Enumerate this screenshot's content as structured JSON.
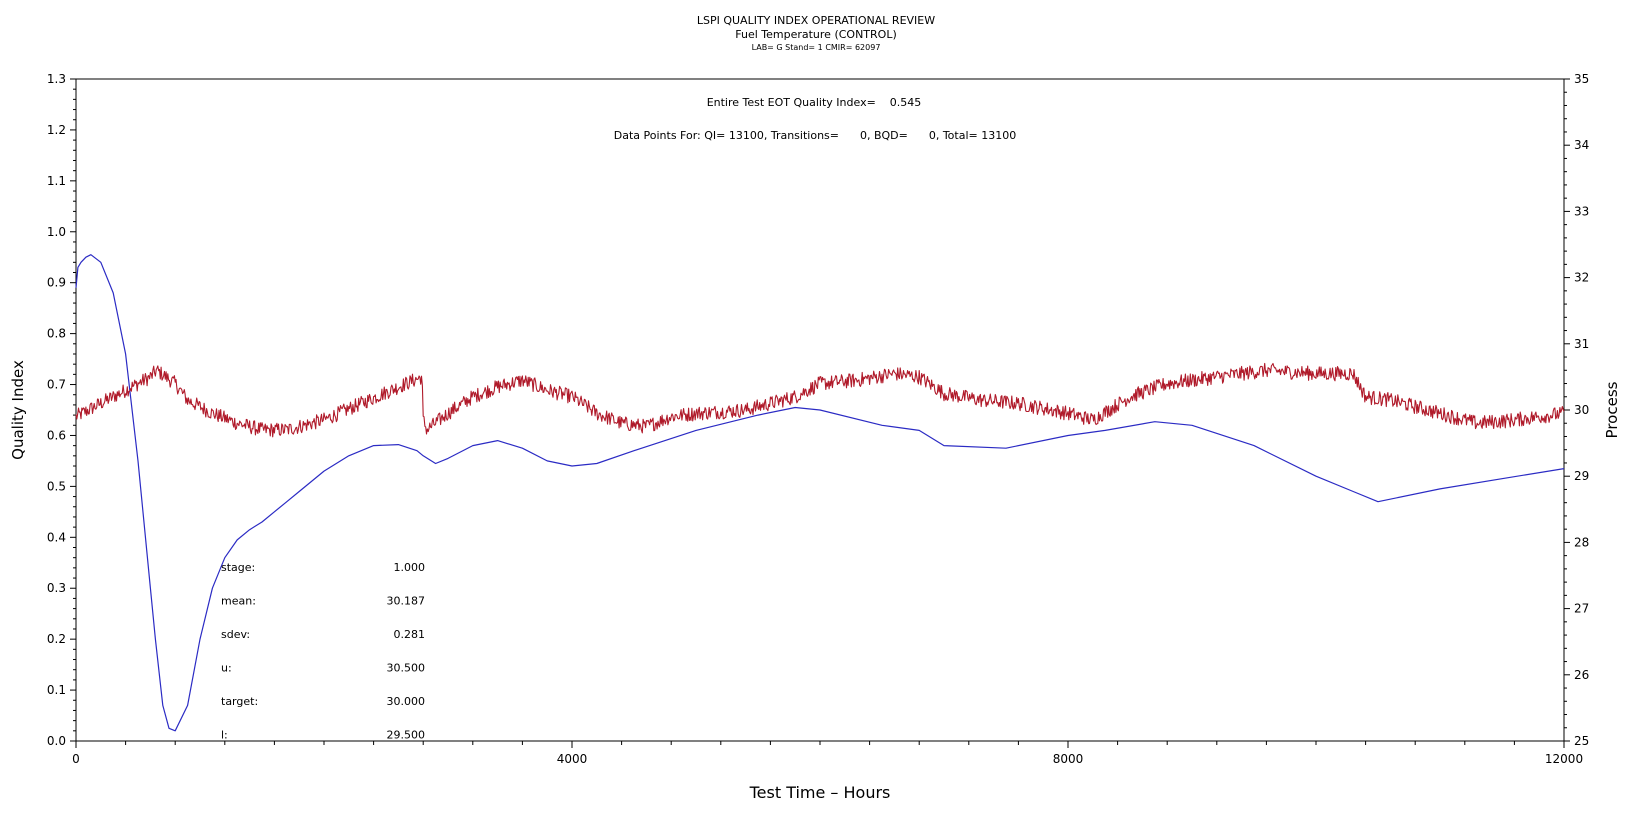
{
  "header": {
    "title": "LSPI QUALITY INDEX OPERATIONAL REVIEW",
    "subtitle": "Fuel Temperature (CONTROL)",
    "info": "LAB= G Stand= 1 CMIR= 62097"
  },
  "annotations": {
    "quality_index": "Entire Test EOT Quality Index=    0.545",
    "data_points": "Data Points For: QI= 13100, Transitions=      0, BQD=      0, Total= 13100"
  },
  "stats": [
    {
      "label": "stage:",
      "value": "1.000"
    },
    {
      "label": "mean:",
      "value": "30.187"
    },
    {
      "label": "sdev:",
      "value": "0.281"
    },
    {
      "label": "u:",
      "value": "30.500"
    },
    {
      "label": "target:",
      "value": "30.000"
    },
    {
      "label": "l:",
      "value": "29.500"
    }
  ],
  "colors": {
    "quality_index": "#2b2bc4",
    "process": "#b01a2a",
    "axis": "#000000"
  },
  "chart_data": {
    "type": "line",
    "xlabel": "Test Time – Hours",
    "ylabel": "Quality Index",
    "y2label": "Process",
    "xlim": [
      0,
      12000
    ],
    "ylim": [
      0,
      1.3
    ],
    "y2lim": [
      25,
      35
    ],
    "x_ticks": [
      0,
      4000,
      8000,
      12000
    ],
    "y_ticks": [
      "0.0",
      "0.1",
      "0.2",
      "0.3",
      "0.4",
      "0.5",
      "0.6",
      "0.7",
      "0.8",
      "0.9",
      "1.0",
      "1.1",
      "1.2",
      "1.3"
    ],
    "y2_ticks": [
      "25",
      "26",
      "27",
      "28",
      "29",
      "30",
      "31",
      "32",
      "33",
      "34",
      "35"
    ],
    "series": [
      {
        "axis": "left",
        "color": "#2b2bc4",
        "x": [
          0,
          15,
          40,
          80,
          120,
          200,
          300,
          400,
          500,
          600,
          640,
          700,
          750,
          800,
          900,
          1000,
          1100,
          1200,
          1300,
          1400,
          1500,
          1600,
          1700,
          1800,
          2000,
          2200,
          2400,
          2600,
          2750,
          2800,
          2900,
          3000,
          3200,
          3400,
          3600,
          3800,
          4000,
          4200,
          4500,
          5000,
          5500,
          5800,
          6000,
          6500,
          6800,
          7000,
          7500,
          8000,
          8300,
          8700,
          9000,
          9500,
          10000,
          10300,
          10500,
          11000,
          11500,
          12000
        ],
        "y": [
          0.89,
          0.93,
          0.94,
          0.95,
          0.955,
          0.94,
          0.88,
          0.76,
          0.55,
          0.3,
          0.2,
          0.07,
          0.025,
          0.02,
          0.07,
          0.2,
          0.3,
          0.36,
          0.395,
          0.415,
          0.43,
          0.45,
          0.47,
          0.49,
          0.53,
          0.56,
          0.58,
          0.582,
          0.57,
          0.56,
          0.545,
          0.555,
          0.58,
          0.59,
          0.575,
          0.55,
          0.54,
          0.545,
          0.57,
          0.61,
          0.64,
          0.655,
          0.65,
          0.62,
          0.61,
          0.58,
          0.575,
          0.6,
          0.61,
          0.627,
          0.62,
          0.58,
          0.52,
          0.49,
          0.47,
          0.495,
          0.515,
          0.535
        ]
      },
      {
        "axis": "right",
        "color": "#b01a2a",
        "x": [
          0,
          300,
          600,
          650,
          800,
          900,
          1100,
          1300,
          1500,
          1700,
          2000,
          2300,
          2600,
          2790,
          2800,
          2830,
          3000,
          3200,
          3400,
          3600,
          3800,
          4000,
          4200,
          4400,
          4600,
          4800,
          5000,
          5400,
          5800,
          6000,
          6300,
          6600,
          6800,
          7000,
          7300,
          7600,
          8000,
          8200,
          8500,
          8800,
          9200,
          9600,
          10000,
          10300,
          10400,
          10600,
          11000,
          11300,
          11600,
          12000
        ],
        "y": [
          29.9,
          30.2,
          30.5,
          30.6,
          30.4,
          30.15,
          29.95,
          29.8,
          29.7,
          29.7,
          29.85,
          30.1,
          30.35,
          30.5,
          29.85,
          29.7,
          29.95,
          30.2,
          30.35,
          30.45,
          30.3,
          30.2,
          29.95,
          29.8,
          29.75,
          29.9,
          29.95,
          30.0,
          30.2,
          30.4,
          30.45,
          30.55,
          30.5,
          30.25,
          30.15,
          30.1,
          29.95,
          29.85,
          30.2,
          30.4,
          30.5,
          30.6,
          30.55,
          30.55,
          30.2,
          30.15,
          29.95,
          29.8,
          29.85,
          29.95
        ]
      }
    ]
  }
}
